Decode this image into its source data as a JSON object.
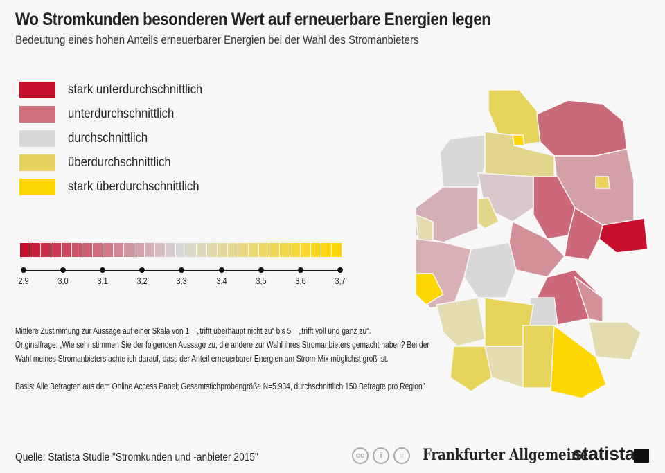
{
  "header": {
    "title": "Wo Stromkunden besonderen Wert auf erneuerbare Energien legen",
    "subtitle": "Bedeutung eines hohen Anteils erneuerbarer Energien bei der Wahl des Stromanbieters"
  },
  "legend": [
    {
      "label": "stark unterdurchschnittlich",
      "color": "#c8102e"
    },
    {
      "label": "unterdurchschnittlich",
      "color": "#cf717d"
    },
    {
      "label": "durchschnittlich",
      "color": "#d8d8d8"
    },
    {
      "label": "überdurchschnittlich",
      "color": "#e5d060"
    },
    {
      "label": "stark überdurchschnittlich",
      "color": "#ffd700"
    }
  ],
  "scale": {
    "min": 2.9,
    "max": 3.7,
    "mid": 3.3,
    "colors": {
      "low": "#c8102e",
      "mid": "#d8d8d8",
      "high": "#ffd700"
    },
    "ticks": [
      "2,9",
      "3,0",
      "3,1",
      "3,2",
      "3,3",
      "3,4",
      "3,5",
      "3,6",
      "3,7"
    ]
  },
  "notes": {
    "line1": "Mittlere Zustimmung zur Aussage auf einer Skala von 1 = „trifft überhaupt nicht zu“ bis 5 = „trifft voll und ganz zu“.",
    "line2": "Originalfrage: „Wie sehr stimmen Sie der folgenden Aussage zu, die andere zur Wahl ihres Stromanbieters gemacht haben? Bei der",
    "line3": "Wahl meines Stromanbieters achte ich darauf, dass der Anteil erneuerbarer Energien am Strom-Mix möglichst groß ist.",
    "basis": "Basis: Alle Befragten aus dem Online Access Panel; Gesamtstichprobengröße N=5.934, durchschnittlich 150 Befragte pro Region\""
  },
  "map": {
    "region_colors": [
      "#e5d35a",
      "#ffd700",
      "#c96a78",
      "#d8d8d8",
      "#e2d68a",
      "#d4a0a6",
      "#ecd35a",
      "#cc6878",
      "#d8c8cc",
      "#e2d68a",
      "#d4b0b6",
      "#e2dcb0",
      "#c8102e",
      "#cc6878",
      "#d49098",
      "#d8d8d8",
      "#d8b0b6",
      "#ffd700",
      "#cc6878",
      "#d8d8d8",
      "#e2dcb0",
      "#e5d35a",
      "#d49098",
      "#e2dcb0",
      "#e5d35a",
      "#e2dcb0",
      "#e5d35a",
      "#ffd700"
    ]
  },
  "footer": {
    "source": "Quelle: Statista Studie \"Stromkunden und -anbieter 2015\"",
    "cc_icons": [
      "cc-icon",
      "by-icon",
      "nd-icon"
    ],
    "cc_labels": [
      "cc",
      "i",
      "="
    ],
    "faz": "Frankfurter Allgemeine",
    "statista": "statista"
  }
}
